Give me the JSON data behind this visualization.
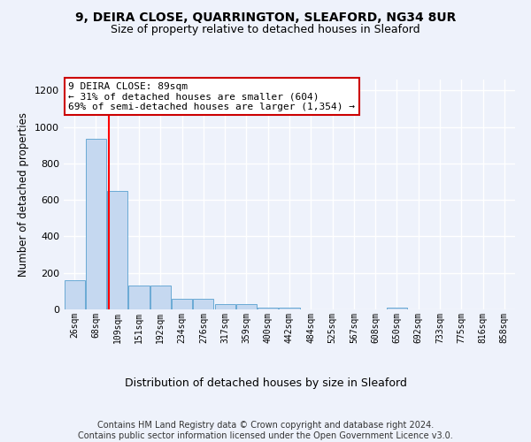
{
  "title1": "9, DEIRA CLOSE, QUARRINGTON, SLEAFORD, NG34 8UR",
  "title2": "Size of property relative to detached houses in Sleaford",
  "xlabel": "Distribution of detached houses by size in Sleaford",
  "ylabel": "Number of detached properties",
  "footer": "Contains HM Land Registry data © Crown copyright and database right 2024.\nContains public sector information licensed under the Open Government Licence v3.0.",
  "bin_labels": [
    "26sqm",
    "68sqm",
    "109sqm",
    "151sqm",
    "192sqm",
    "234sqm",
    "276sqm",
    "317sqm",
    "359sqm",
    "400sqm",
    "442sqm",
    "484sqm",
    "525sqm",
    "567sqm",
    "608sqm",
    "650sqm",
    "692sqm",
    "733sqm",
    "775sqm",
    "816sqm",
    "858sqm"
  ],
  "bar_values": [
    158,
    935,
    650,
    130,
    130,
    57,
    57,
    30,
    30,
    12,
    12,
    0,
    0,
    0,
    0,
    12,
    0,
    0,
    0,
    0,
    0
  ],
  "bar_color": "#c5d8f0",
  "bar_edge_color": "#6aaad4",
  "red_line_x": 1.6,
  "annotation_text": "9 DEIRA CLOSE: 89sqm\n← 31% of detached houses are smaller (604)\n69% of semi-detached houses are larger (1,354) →",
  "annotation_box_color": "#ffffff",
  "annotation_box_edge_color": "#cc0000",
  "ylim": [
    0,
    1260
  ],
  "yticks": [
    0,
    200,
    400,
    600,
    800,
    1000,
    1200
  ],
  "background_color": "#eef2fb",
  "plot_bg_color": "#eef2fb",
  "title1_fontsize": 10,
  "title2_fontsize": 9,
  "xlabel_fontsize": 9,
  "ylabel_fontsize": 8.5,
  "annotation_fontsize": 8,
  "footer_fontsize": 7,
  "tick_fontsize": 7,
  "ytick_fontsize": 8,
  "grid_color": "#ffffff",
  "n_bins": 21
}
